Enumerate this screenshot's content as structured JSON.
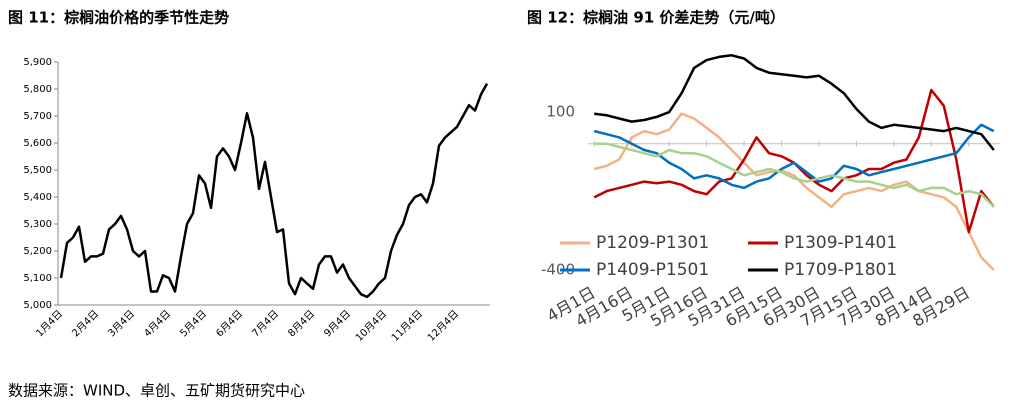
{
  "chart_data": [
    {
      "type": "line",
      "title": "图 11：棕榈油价格的季节性走势",
      "categories": [
        "1月4日",
        null,
        null,
        null,
        null,
        null,
        "2月4日",
        null,
        null,
        null,
        null,
        null,
        "3月4日",
        null,
        null,
        null,
        null,
        null,
        "4月4日",
        null,
        null,
        null,
        null,
        null,
        "5月4日",
        null,
        null,
        null,
        null,
        null,
        "6月4日",
        null,
        null,
        null,
        null,
        null,
        "7月4日",
        null,
        null,
        null,
        null,
        null,
        "8月4日",
        null,
        null,
        null,
        null,
        null,
        "9月4日",
        null,
        null,
        null,
        null,
        null,
        "10月4日",
        null,
        null,
        null,
        null,
        null,
        "11月4日",
        null,
        null,
        null,
        null,
        null,
        "12月4日",
        null,
        null,
        null,
        null,
        null
      ],
      "series": [
        {
          "color": "#000000",
          "values": [
            5100,
            5230,
            5250,
            5290,
            5160,
            5180,
            5180,
            5190,
            5280,
            5300,
            5330,
            5280,
            5200,
            5180,
            5200,
            5050,
            5050,
            5110,
            5100,
            5050,
            5180,
            5300,
            5340,
            5480,
            5450,
            5360,
            5550,
            5580,
            5550,
            5500,
            5600,
            5710,
            5620,
            5430,
            5530,
            5400,
            5270,
            5280,
            5080,
            5040,
            5100,
            5080,
            5060,
            5150,
            5180,
            5180,
            5120,
            5150,
            5100,
            5070,
            5040,
            5030,
            5050,
            5080,
            5100,
            5200,
            5260,
            5300,
            5370,
            5400,
            5410,
            5380,
            5450,
            5590,
            5620,
            5640,
            5660,
            5700,
            5740,
            5720,
            5780,
            5820
          ]
        }
      ],
      "ylim": [
        5000,
        5900
      ],
      "yticks": [
        {
          "value": 5000,
          "label": "5,000"
        },
        {
          "value": 5100,
          "label": "5,100"
        },
        {
          "value": 5200,
          "label": "5,200"
        },
        {
          "value": 5300,
          "label": "5,300"
        },
        {
          "value": 5400,
          "label": "5,400"
        },
        {
          "value": 5500,
          "label": "5,500"
        },
        {
          "value": 5600,
          "label": "5,600"
        },
        {
          "value": 5700,
          "label": "5,700"
        },
        {
          "value": 5800,
          "label": "5,800"
        },
        {
          "value": 5900,
          "label": "5,900"
        }
      ],
      "grid": false
    },
    {
      "type": "line",
      "title": "图 12：棕榈油 91 价差走势（元/吨）",
      "categories": [
        "4月1日",
        null,
        null,
        "4月16日",
        null,
        null,
        "5月1日",
        null,
        null,
        "5月16日",
        null,
        null,
        "5月31日",
        null,
        null,
        "6月15日",
        null,
        null,
        "6月30日",
        null,
        null,
        "7月15日",
        null,
        null,
        "7月30日",
        null,
        null,
        "8月14日",
        null,
        null,
        "8月29日",
        null,
        null
      ],
      "series": [
        {
          "name": "P1209-P1301",
          "color": "#f4b183",
          "values": [
            -80,
            -70,
            -50,
            20,
            40,
            30,
            45,
            95,
            80,
            50,
            20,
            -20,
            -60,
            -100,
            -90,
            -85,
            -100,
            -140,
            -170,
            -200,
            -160,
            -150,
            -140,
            -150,
            -130,
            -120,
            -150,
            -160,
            -170,
            -200,
            -280,
            -360,
            -400
          ]
        },
        {
          "name": "P1309-P1401",
          "color": "#c00000",
          "values": [
            -170,
            -150,
            -140,
            -130,
            -120,
            -125,
            -120,
            -130,
            -150,
            -160,
            -120,
            -110,
            -50,
            20,
            -30,
            -40,
            -60,
            -100,
            -130,
            -150,
            -110,
            -100,
            -80,
            -80,
            -60,
            -50,
            20,
            170,
            120,
            -50,
            -280,
            -150,
            -200
          ]
        },
        {
          "name": "P1409-P1501",
          "color": "#0070c0",
          "values": [
            40,
            30,
            20,
            0,
            -20,
            -30,
            -60,
            -80,
            -110,
            -100,
            -110,
            -130,
            -140,
            -120,
            -110,
            -80,
            -60,
            -90,
            -120,
            -110,
            -70,
            -80,
            -100,
            -90,
            -80,
            -70,
            -60,
            -50,
            -40,
            -30,
            20,
            60,
            40
          ]
        },
        {
          "name": "P1709-P1801",
          "color": "#000000",
          "values": [
            95,
            90,
            80,
            70,
            75,
            85,
            100,
            160,
            240,
            265,
            275,
            280,
            270,
            240,
            225,
            220,
            215,
            210,
            215,
            190,
            160,
            110,
            70,
            50,
            60,
            55,
            50,
            45,
            40,
            50,
            40,
            30,
            -20
          ]
        },
        {
          "color": "#a9d18e",
          "values": [
            0,
            0,
            -10,
            -20,
            -30,
            -40,
            -20,
            -30,
            -30,
            -40,
            -60,
            -80,
            -100,
            -90,
            -80,
            -90,
            -110,
            -120,
            -110,
            -100,
            -110,
            -120,
            -120,
            -130,
            -140,
            -130,
            -150,
            -140,
            -140,
            -160,
            -150,
            -160,
            -200
          ]
        }
      ],
      "ylim": [
        -400,
        300
      ],
      "yticks": [
        100,
        -400
      ],
      "grid": false,
      "legend": "lower center"
    }
  ],
  "source": "数据来源：WIND、卓创、五矿期货研究中心"
}
